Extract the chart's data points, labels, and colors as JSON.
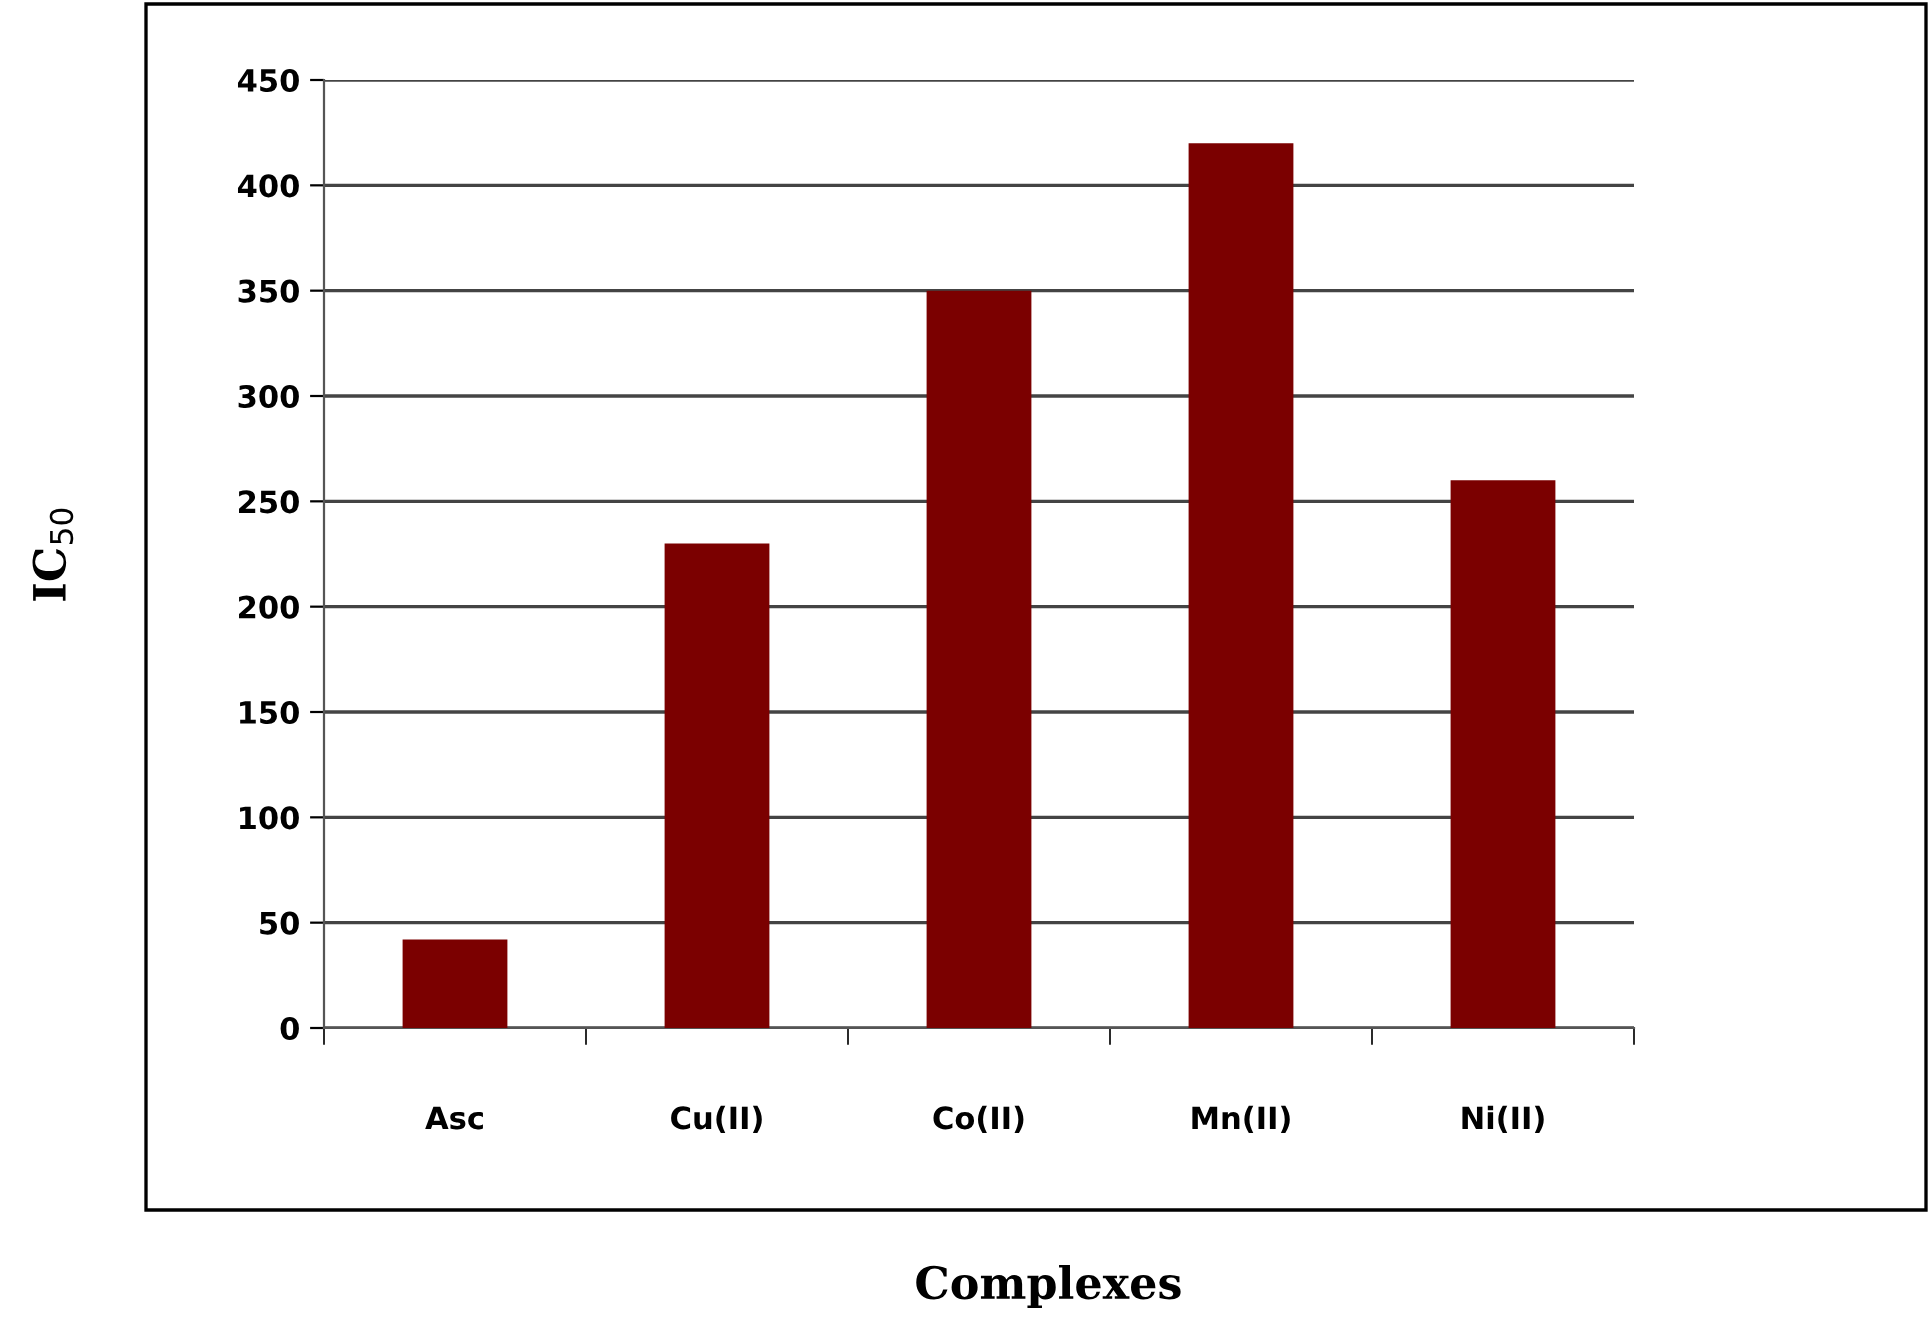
{
  "chart_data": {
    "type": "bar",
    "xlabel": "Complexes",
    "ylabel": "IC$_{50}$",
    "categories": [
      "Asc",
      "Cu(II)",
      "Co(II)",
      "Mn(II)",
      "Ni(II)"
    ],
    "values": [
      42,
      230,
      350,
      420,
      260
    ],
    "color": "#7b0000",
    "ylim": [
      0,
      450
    ],
    "yticks": [
      0,
      50,
      100,
      150,
      200,
      250,
      300,
      350,
      400,
      450
    ],
    "grid": "y",
    "legend": false
  }
}
